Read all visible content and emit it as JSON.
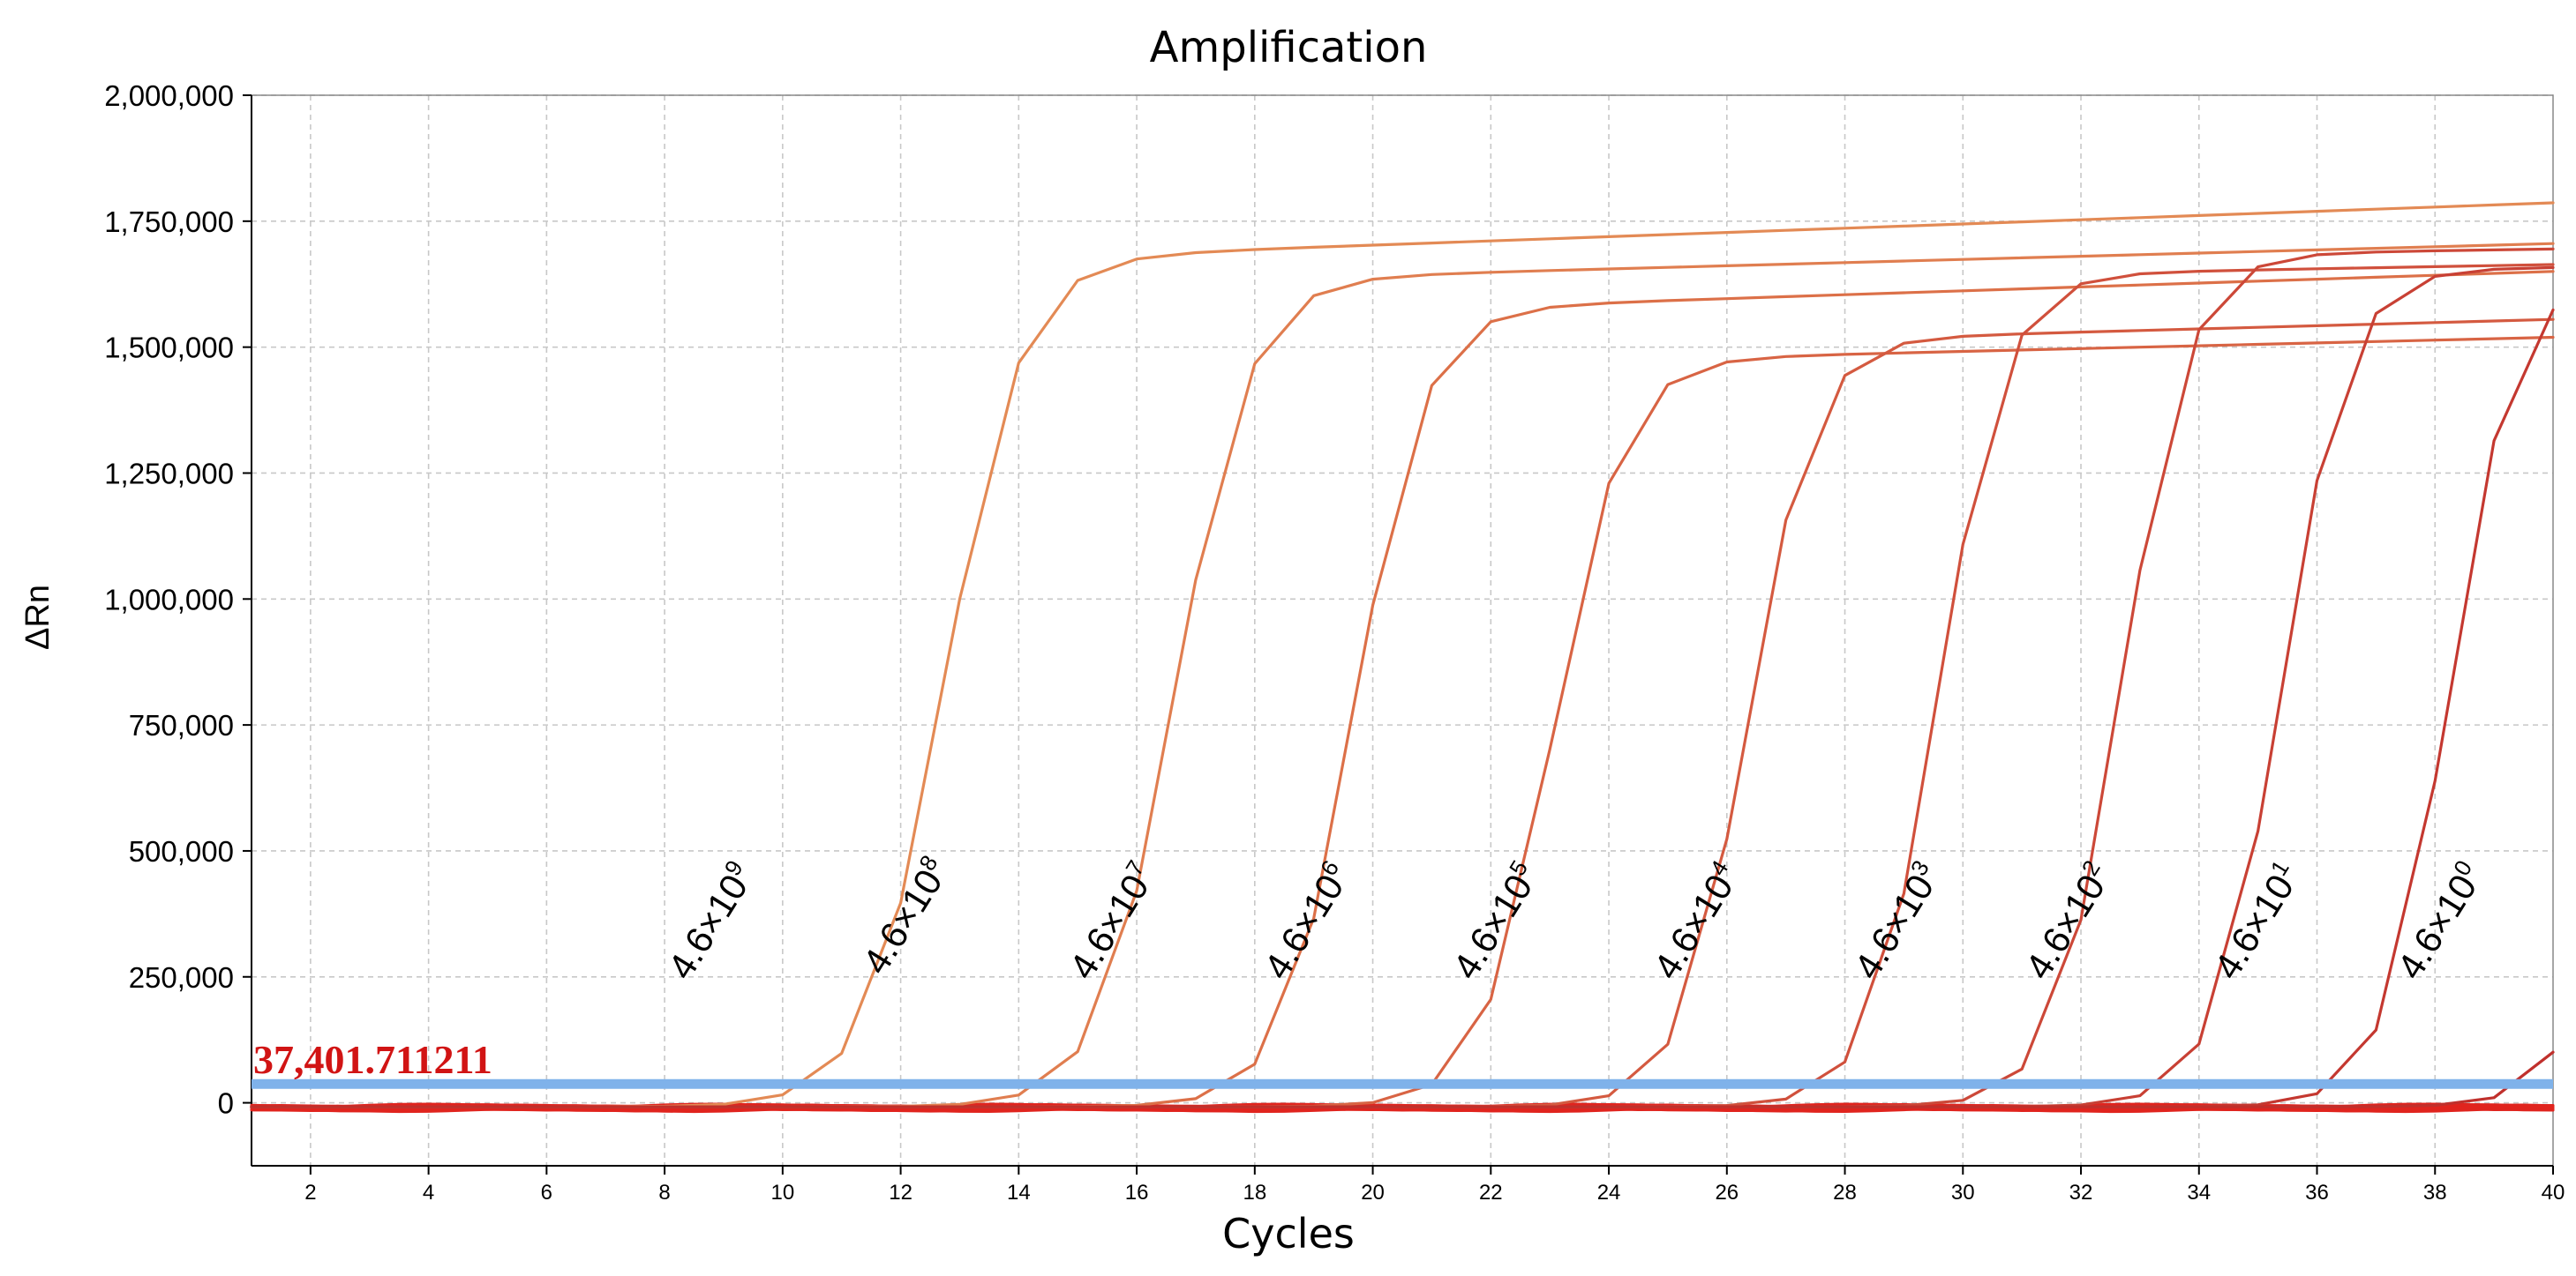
{
  "chart_data": {
    "type": "line",
    "title": "Amplification",
    "xlabel": "Cycles",
    "ylabel": "ΔRn",
    "xlim": [
      1,
      40
    ],
    "ylim": [
      -125000,
      2000000
    ],
    "x_ticks": [
      2,
      4,
      6,
      8,
      10,
      12,
      14,
      16,
      18,
      20,
      22,
      24,
      26,
      28,
      30,
      32,
      34,
      36,
      38,
      40
    ],
    "x_tick_labels": [
      "2",
      "4",
      "6",
      "8",
      "10",
      "12",
      "14",
      "16",
      "18",
      "20",
      "22",
      "24",
      "26",
      "28",
      "30",
      "32",
      "34",
      "36",
      "38",
      "40"
    ],
    "y_ticks": [
      0,
      250000,
      500000,
      750000,
      1000000,
      1250000,
      1500000,
      1750000,
      2000000
    ],
    "y_tick_labels": [
      "0",
      "250,000",
      "500,000",
      "750,000",
      "1,000,000",
      "1,250,000",
      "1,500,000",
      "1,750,000",
      "2,000,000"
    ],
    "grid": true,
    "threshold": {
      "value": 37401.711211,
      "label": "37,401.711211",
      "color": "#7fb2ea"
    },
    "series": [
      {
        "name": "4.6×10^9",
        "base": "4.6×10",
        "exp": "9",
        "ct": 10.3,
        "plateau": 1680000,
        "drift": 12000,
        "slope": 1.55,
        "color": "#e38a55",
        "label_x": 8.4,
        "label_y": 450000
      },
      {
        "name": "4.6×10^8",
        "base": "4.6×10",
        "exp": "8",
        "ct": 14.3,
        "plateau": 1640000,
        "drift": 9000,
        "slope": 1.6,
        "color": "#e07e50",
        "label_x": 11.7,
        "label_y": 460000
      },
      {
        "name": "4.6×10^7",
        "base": "4.6×10",
        "exp": "7",
        "ct": 17.5,
        "plateau": 1580000,
        "drift": 11000,
        "slope": 1.7,
        "color": "#dc7048",
        "label_x": 15.2,
        "label_y": 450000
      },
      {
        "name": "4.6×10^6",
        "base": "4.6×10",
        "exp": "6",
        "ct": 20.9,
        "plateau": 1480000,
        "drift": 8000,
        "slope": 1.7,
        "color": "#d86444",
        "label_x": 18.5,
        "label_y": 450000
      },
      {
        "name": "4.6×10^5",
        "base": "4.6×10",
        "exp": "5",
        "ct": 24.3,
        "plateau": 1520000,
        "drift": 9000,
        "slope": 1.8,
        "color": "#d45a40",
        "label_x": 21.7,
        "label_y": 450000
      },
      {
        "name": "4.6×10^4",
        "base": "4.6×10",
        "exp": "4",
        "ct": 27.5,
        "plateau": 1650000,
        "drift": 6000,
        "slope": 1.8,
        "color": "#d0503c",
        "label_x": 25.1,
        "label_y": 450000
      },
      {
        "name": "4.6×10^3",
        "base": "4.6×10",
        "exp": "3",
        "ct": 30.6,
        "plateau": 1690000,
        "drift": 5000,
        "slope": 1.8,
        "color": "#cc4838",
        "label_x": 28.5,
        "label_y": 450000
      },
      {
        "name": "4.6×10^2",
        "base": "4.6×10",
        "exp": "2",
        "ct": 33.3,
        "plateau": 1660000,
        "drift": 4000,
        "slope": 1.8,
        "color": "#c84034",
        "label_x": 31.4,
        "label_y": 450000
      },
      {
        "name": "4.6×10^1",
        "base": "4.6×10",
        "exp": "1",
        "ct": 36.2,
        "plateau": 1640000,
        "drift": 3000,
        "slope": 1.85,
        "color": "#c43830",
        "label_x": 34.6,
        "label_y": 450000
      },
      {
        "name": "4.6×10^0",
        "base": "4.6×10",
        "exp": "0",
        "ct": 39.4,
        "plateau": 1640000,
        "drift": 2000,
        "slope": 1.85,
        "color": "#c0302c",
        "label_x": 37.7,
        "label_y": 450000
      }
    ],
    "baseline_color": "#e0241e"
  }
}
